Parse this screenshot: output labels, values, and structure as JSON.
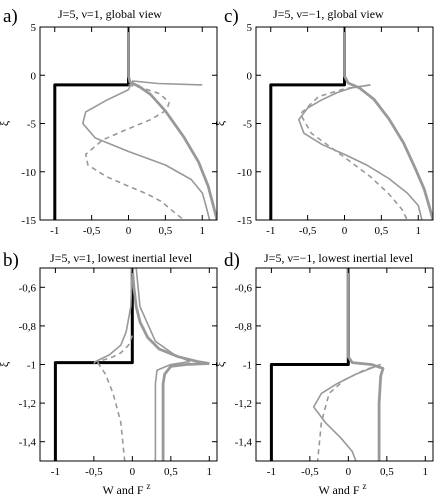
{
  "figure": {
    "xlabel": "W and F",
    "xlabel_sup": "z",
    "ylabel": "ξ"
  },
  "colors": {
    "thick_black": "#000000",
    "gray": "#999999",
    "dashed_gray": "#999999"
  },
  "chart_data": [
    {
      "id": "a",
      "letter": "a)",
      "title": "J=5, ν=1, global view",
      "type": "line",
      "xlim": [
        -1.2,
        1.2
      ],
      "ylim": [
        -15,
        5
      ],
      "xticks": [
        -1,
        -0.5,
        0,
        0.5,
        1
      ],
      "xticklabels": [
        "-1",
        "-0,5",
        "0",
        "0,5",
        "1"
      ],
      "yticks": [
        5,
        0,
        -5,
        -10,
        -15
      ],
      "yticklabels": [
        "5",
        "0",
        "-5",
        "-10",
        "-15"
      ],
      "series": [
        {
          "style": "thick-black",
          "x": [
            0,
            0,
            -1,
            -1
          ],
          "y": [
            5,
            -1,
            -1,
            -15
          ]
        },
        {
          "style": "thick-gray",
          "x": [
            0,
            0,
            0.02,
            0.15,
            0.3,
            0.5,
            0.75,
            0.95,
            1.08,
            1.15,
            1.2
          ],
          "y": [
            5,
            -0.1,
            -0.7,
            -1.2,
            -2.0,
            -3.7,
            -6.4,
            -9.0,
            -11.5,
            -13.5,
            -15
          ]
        },
        {
          "style": "thin-gray",
          "x": [
            1.0,
            0.4,
            0.06,
            0.03,
            0.0,
            -0.3,
            -0.58,
            -0.62,
            -0.45,
            0.0,
            0.5,
            0.85,
            1.0,
            1.05,
            1.1
          ],
          "y": [
            -1.0,
            -0.85,
            -0.6,
            -1.0,
            -1.5,
            -2.6,
            -3.8,
            -5.0,
            -6.5,
            -7.9,
            -9.3,
            -10.8,
            -12.2,
            -13.5,
            -15
          ]
        },
        {
          "style": "dashed-gray",
          "x": [
            0.0,
            0.18,
            0.42,
            0.55,
            0.52,
            0.3,
            -0.05,
            -0.35,
            -0.58,
            -0.55,
            -0.3,
            0.0,
            0.25,
            0.45,
            0.62,
            0.75
          ],
          "y": [
            -1.0,
            -1.3,
            -1.9,
            -2.8,
            -3.6,
            -4.6,
            -5.7,
            -6.7,
            -8.2,
            -9.3,
            -10.5,
            -11.5,
            -12.3,
            -13.1,
            -14.2,
            -15
          ]
        }
      ]
    },
    {
      "id": "c",
      "letter": "c)",
      "title": "J=5, ν=−1, global view",
      "type": "line",
      "xlim": [
        -1.2,
        1.2
      ],
      "ylim": [
        -15,
        5
      ],
      "xticks": [
        -1,
        -0.5,
        0,
        0.5,
        1
      ],
      "xticklabels": [
        "-1",
        "-0,5",
        "0",
        "0,5",
        "1"
      ],
      "yticks": [
        5,
        0,
        -5,
        -10,
        -15
      ],
      "yticklabels": [
        "5",
        "0",
        "-5",
        "-10",
        "-15"
      ],
      "series": [
        {
          "style": "thick-black",
          "x": [
            0,
            0,
            -1,
            -1
          ],
          "y": [
            5,
            -1,
            -1,
            -15
          ]
        },
        {
          "style": "thick-gray",
          "x": [
            0,
            0,
            0.05,
            0.2,
            0.4,
            0.6,
            0.8,
            0.95,
            1.08,
            1.15,
            1.2
          ],
          "y": [
            5,
            -0.1,
            -0.8,
            -1.3,
            -2.5,
            -4.5,
            -7.0,
            -9.5,
            -11.8,
            -13.6,
            -15
          ]
        },
        {
          "style": "thin-gray",
          "x": [
            0.35,
            0.1,
            -0.1,
            -0.32,
            -0.5,
            -0.62,
            -0.55,
            -0.3,
            0.0,
            0.3,
            0.6,
            0.85,
            1.0,
            1.05
          ],
          "y": [
            -1.0,
            -1.3,
            -1.8,
            -2.6,
            -3.4,
            -4.6,
            -6.0,
            -7.2,
            -8.2,
            -9.3,
            -10.7,
            -12.2,
            -13.5,
            -15
          ]
        },
        {
          "style": "dashed-gray",
          "x": [
            0.35,
            0.0,
            -0.35,
            -0.6,
            -0.45,
            0.0,
            0.35,
            0.6,
            0.78,
            0.85
          ],
          "y": [
            -1.0,
            -1.4,
            -2.2,
            -4.0,
            -6.0,
            -8.5,
            -10.5,
            -12.3,
            -13.9,
            -15
          ]
        }
      ]
    },
    {
      "id": "b",
      "letter": "b)",
      "title": "J=5, ν=1,  lowest inertial level",
      "type": "line",
      "xlim": [
        -1.2,
        1.1
      ],
      "ylim": [
        -1.5,
        -0.5
      ],
      "xticks": [
        -1,
        -0.5,
        0,
        0.5,
        1
      ],
      "xticklabels": [
        "-1",
        "-0,5",
        "0",
        "0,5",
        "1"
      ],
      "yticks": [
        -0.6,
        -0.8,
        -1,
        -1.2,
        -1.4
      ],
      "yticklabels": [
        "-0,6",
        "-0,8",
        "-1",
        "-1,2",
        "-1,4"
      ],
      "series": [
        {
          "style": "thick-black",
          "x": [
            0,
            0,
            -1,
            -1
          ],
          "y": [
            -0.5,
            -0.99,
            -0.99,
            -1.5
          ]
        },
        {
          "style": "thick-gray",
          "x": [
            0.0,
            0.02,
            0.05,
            0.1,
            0.2,
            0.35,
            0.6,
            0.85,
            1.0
          ],
          "y": [
            -0.5,
            -0.6,
            -0.7,
            -0.78,
            -0.86,
            -0.92,
            -0.96,
            -0.985,
            -0.995
          ]
        },
        {
          "style": "thick-gray",
          "x": [
            1.0,
            0.7,
            0.5,
            0.42,
            0.4,
            0.4,
            0.4
          ],
          "y": [
            -0.995,
            -1.0,
            -1.01,
            -1.05,
            -1.1,
            -1.3,
            -1.5
          ]
        },
        {
          "style": "thin-gray",
          "x": [
            0.0,
            -0.02,
            -0.08,
            -0.15,
            -0.3,
            -0.48,
            -0.5
          ],
          "y": [
            -0.5,
            -0.7,
            -0.83,
            -0.9,
            -0.95,
            -0.985,
            -0.995
          ]
        },
        {
          "style": "thin-gray",
          "x": [
            0.05,
            0.1,
            0.3,
            0.55,
            0.75
          ],
          "y": [
            -0.5,
            -0.7,
            -0.88,
            -0.95,
            -0.985
          ]
        },
        {
          "style": "thin-gray",
          "x": [
            0.75,
            0.5,
            0.32,
            0.3,
            0.3
          ],
          "y": [
            -0.985,
            -1.0,
            -1.03,
            -1.1,
            -1.5
          ]
        },
        {
          "style": "dashed-gray",
          "x": [
            0.0,
            -0.05,
            -0.15,
            -0.25,
            -0.4,
            -0.45
          ],
          "y": [
            -0.85,
            -0.9,
            -0.94,
            -0.96,
            -0.98,
            -0.99
          ]
        },
        {
          "style": "dashed-gray",
          "x": [
            -0.45,
            -0.35,
            -0.25,
            -0.15,
            -0.1
          ],
          "y": [
            -0.99,
            -1.05,
            -1.15,
            -1.3,
            -1.5
          ]
        }
      ]
    },
    {
      "id": "d",
      "letter": "d)",
      "title": "J=5, ν=−1,  lowest inertial level",
      "type": "line",
      "xlim": [
        -1.2,
        1.1
      ],
      "ylim": [
        -1.5,
        -0.5
      ],
      "xticks": [
        -1,
        -0.5,
        0,
        0.5,
        1
      ],
      "xticklabels": [
        "-1",
        "-0,5",
        "0",
        "0,5",
        "1"
      ],
      "yticks": [
        -0.6,
        -0.8,
        -1,
        -1.2,
        -1.4
      ],
      "yticklabels": [
        "-0,6",
        "-0,8",
        "-1",
        "-1,2",
        "-1,4"
      ],
      "series": [
        {
          "style": "thick-black",
          "x": [
            0,
            0,
            -1,
            -1
          ],
          "y": [
            -0.5,
            -1.0,
            -1.0,
            -1.5
          ]
        },
        {
          "style": "thick-gray",
          "x": [
            0.0,
            0.0,
            0.05,
            0.3,
            0.45,
            0.42,
            0.4,
            0.4
          ],
          "y": [
            -0.5,
            -0.96,
            -0.99,
            -1.0,
            -1.02,
            -1.06,
            -1.2,
            -1.5
          ]
        },
        {
          "style": "thin-gray",
          "x": [
            0.42,
            0.1,
            -0.15,
            -0.35,
            -0.45,
            -0.3,
            -0.1,
            0.05,
            0.1
          ],
          "y": [
            -1.0,
            -1.05,
            -1.1,
            -1.15,
            -1.22,
            -1.3,
            -1.38,
            -1.45,
            -1.5
          ]
        },
        {
          "style": "dashed-gray",
          "x": [
            0.42,
            0.2,
            -0.05,
            -0.25,
            -0.35,
            -0.4
          ],
          "y": [
            -1.0,
            -1.03,
            -1.08,
            -1.15,
            -1.3,
            -1.5
          ]
        }
      ]
    }
  ]
}
